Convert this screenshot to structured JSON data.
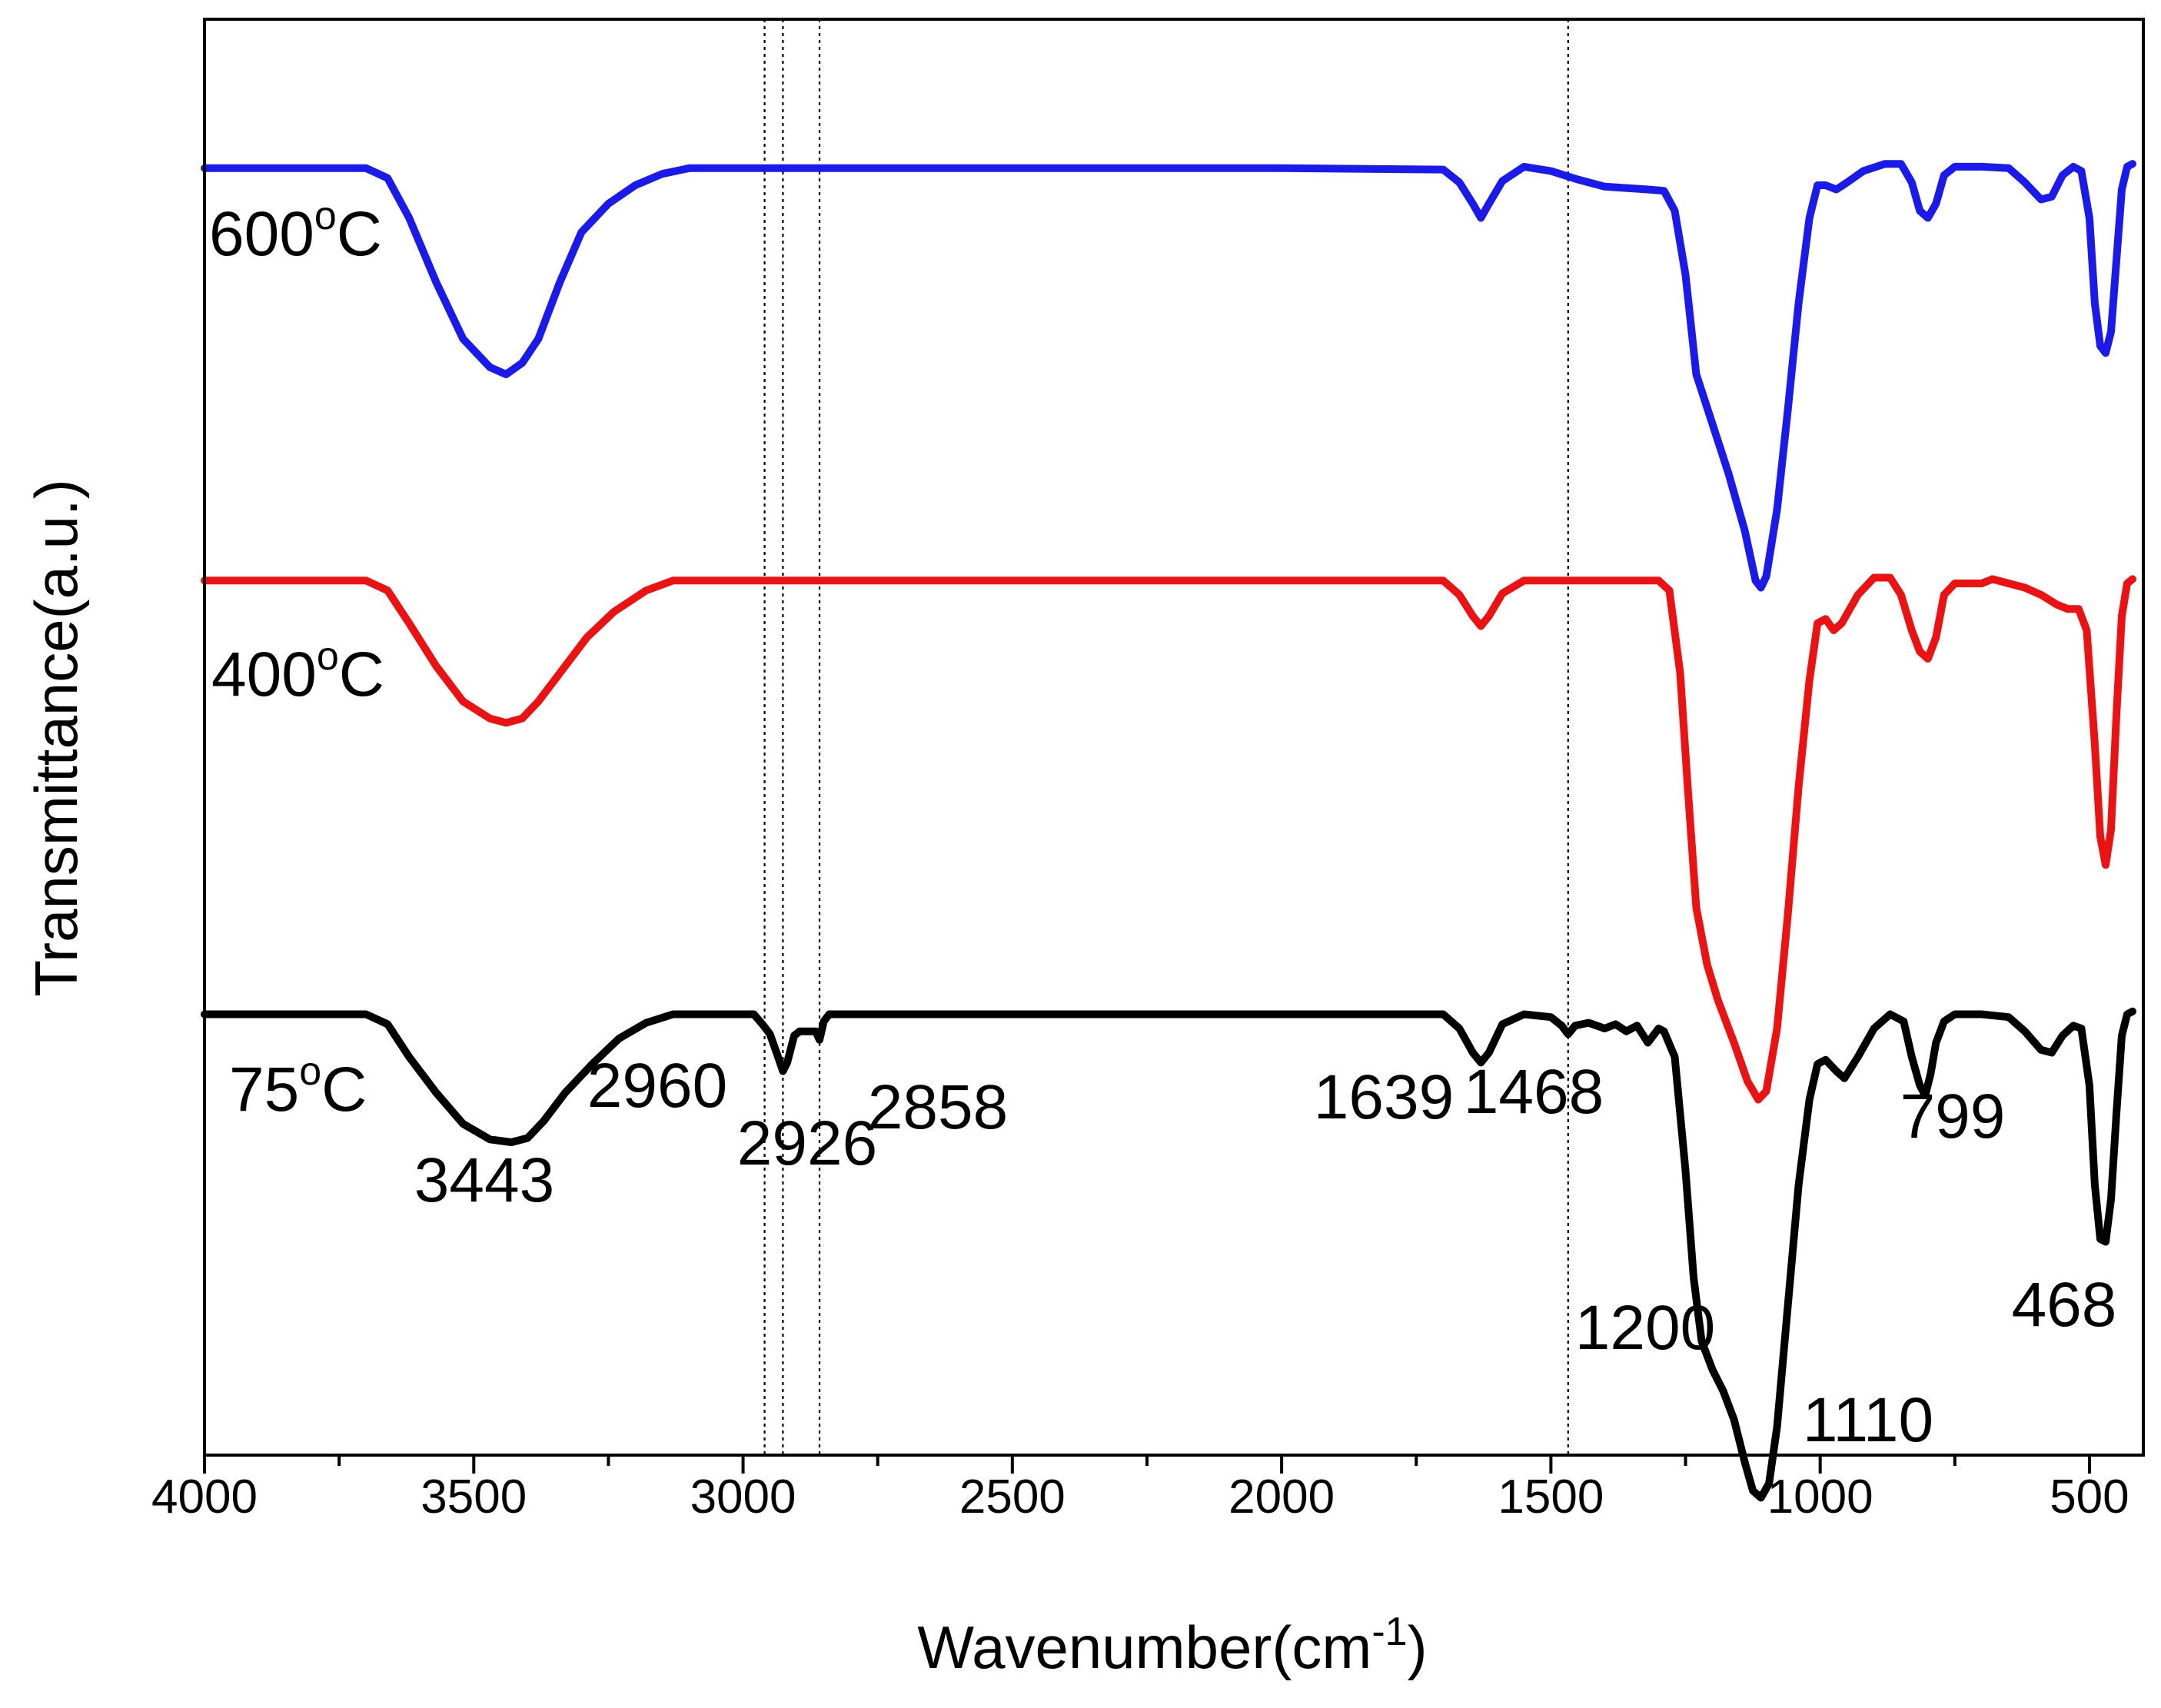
{
  "chart_data": {
    "type": "line",
    "title": "",
    "xlabel": "Wavenumber(cm",
    "xlabel_sup": "-1",
    "xlabel_end": ")",
    "ylabel": "Transmittance(a.u.)",
    "xlim": [
      4000,
      400
    ],
    "ylim": [
      0,
      100
    ],
    "x_ticks": [
      "4000",
      "3500",
      "3000",
      "2500",
      "2000",
      "1500",
      "1000",
      "500"
    ],
    "x_tick_values": [
      4000,
      3500,
      3000,
      2500,
      2000,
      1500,
      1000,
      500
    ],
    "grid": false,
    "reference_lines": [
      2960,
      2926,
      2858,
      1468
    ],
    "series": [
      {
        "name": "600",
        "label_sup": "o",
        "label_end": "C",
        "color": "#1a1aee",
        "points": [
          [
            4000,
            90.5
          ],
          [
            3700,
            90.5
          ],
          [
            3660,
            89.8
          ],
          [
            3620,
            87.0
          ],
          [
            3570,
            82.5
          ],
          [
            3520,
            78.5
          ],
          [
            3470,
            76.5
          ],
          [
            3440,
            76.0
          ],
          [
            3410,
            76.8
          ],
          [
            3380,
            78.5
          ],
          [
            3340,
            82.5
          ],
          [
            3300,
            86.0
          ],
          [
            3250,
            88.0
          ],
          [
            3200,
            89.3
          ],
          [
            3150,
            90.1
          ],
          [
            3100,
            90.5
          ],
          [
            2000,
            90.5
          ],
          [
            1700,
            90.4
          ],
          [
            1670,
            89.5
          ],
          [
            1645,
            88.0
          ],
          [
            1630,
            87.0
          ],
          [
            1615,
            88.0
          ],
          [
            1590,
            89.6
          ],
          [
            1550,
            90.6
          ],
          [
            1500,
            90.3
          ],
          [
            1450,
            89.7
          ],
          [
            1400,
            89.2
          ],
          [
            1320,
            89.0
          ],
          [
            1290,
            88.9
          ],
          [
            1270,
            87.5
          ],
          [
            1250,
            83.0
          ],
          [
            1230,
            76.0
          ],
          [
            1200,
            72.5
          ],
          [
            1170,
            69.0
          ],
          [
            1140,
            65.0
          ],
          [
            1120,
            61.5
          ],
          [
            1110,
            61.0
          ],
          [
            1100,
            61.8
          ],
          [
            1080,
            66.5
          ],
          [
            1060,
            73.5
          ],
          [
            1040,
            81.0
          ],
          [
            1020,
            87.0
          ],
          [
            1005,
            89.3
          ],
          [
            990,
            89.3
          ],
          [
            970,
            89.0
          ],
          [
            950,
            89.5
          ],
          [
            920,
            90.3
          ],
          [
            880,
            90.8
          ],
          [
            850,
            90.8
          ],
          [
            830,
            89.5
          ],
          [
            815,
            87.5
          ],
          [
            800,
            87.0
          ],
          [
            785,
            88.0
          ],
          [
            770,
            90.0
          ],
          [
            750,
            90.6
          ],
          [
            700,
            90.6
          ],
          [
            650,
            90.5
          ],
          [
            620,
            89.5
          ],
          [
            590,
            88.3
          ],
          [
            570,
            88.5
          ],
          [
            550,
            90.0
          ],
          [
            530,
            90.6
          ],
          [
            515,
            90.3
          ],
          [
            500,
            87.0
          ],
          [
            490,
            81.0
          ],
          [
            480,
            78.0
          ],
          [
            470,
            77.5
          ],
          [
            460,
            79.0
          ],
          [
            450,
            84.0
          ],
          [
            440,
            89.0
          ],
          [
            430,
            90.6
          ],
          [
            420,
            90.8
          ]
        ]
      },
      {
        "name": "400",
        "label_sup": "o",
        "label_end": "C",
        "color": "#ee1111",
        "points": [
          [
            4000,
            61.5
          ],
          [
            3700,
            61.5
          ],
          [
            3660,
            60.8
          ],
          [
            3620,
            58.5
          ],
          [
            3570,
            55.5
          ],
          [
            3520,
            53.0
          ],
          [
            3470,
            51.8
          ],
          [
            3440,
            51.5
          ],
          [
            3410,
            51.8
          ],
          [
            3380,
            53.0
          ],
          [
            3340,
            55.0
          ],
          [
            3290,
            57.5
          ],
          [
            3240,
            59.3
          ],
          [
            3180,
            60.8
          ],
          [
            3130,
            61.5
          ],
          [
            2000,
            61.5
          ],
          [
            1700,
            61.5
          ],
          [
            1670,
            60.5
          ],
          [
            1645,
            59.0
          ],
          [
            1630,
            58.3
          ],
          [
            1615,
            59.0
          ],
          [
            1590,
            60.6
          ],
          [
            1550,
            61.5
          ],
          [
            1300,
            61.5
          ],
          [
            1280,
            60.8
          ],
          [
            1260,
            55.0
          ],
          [
            1245,
            46.5
          ],
          [
            1230,
            38.5
          ],
          [
            1210,
            34.5
          ],
          [
            1190,
            32.0
          ],
          [
            1160,
            29.0
          ],
          [
            1135,
            26.3
          ],
          [
            1115,
            25.0
          ],
          [
            1100,
            25.6
          ],
          [
            1080,
            30.0
          ],
          [
            1060,
            38.0
          ],
          [
            1040,
            47.0
          ],
          [
            1020,
            54.5
          ],
          [
            1005,
            58.5
          ],
          [
            990,
            58.8
          ],
          [
            975,
            58.0
          ],
          [
            960,
            58.5
          ],
          [
            930,
            60.5
          ],
          [
            900,
            61.7
          ],
          [
            870,
            61.7
          ],
          [
            850,
            60.5
          ],
          [
            830,
            58.0
          ],
          [
            815,
            56.5
          ],
          [
            800,
            56.0
          ],
          [
            785,
            57.5
          ],
          [
            770,
            60.5
          ],
          [
            750,
            61.3
          ],
          [
            700,
            61.3
          ],
          [
            680,
            61.6
          ],
          [
            650,
            61.3
          ],
          [
            620,
            61.0
          ],
          [
            590,
            60.5
          ],
          [
            560,
            59.8
          ],
          [
            540,
            59.5
          ],
          [
            520,
            59.5
          ],
          [
            505,
            58.0
          ],
          [
            490,
            50.0
          ],
          [
            480,
            43.5
          ],
          [
            470,
            41.5
          ],
          [
            460,
            44.0
          ],
          [
            450,
            52.0
          ],
          [
            440,
            59.0
          ],
          [
            430,
            61.3
          ],
          [
            420,
            61.6
          ]
        ]
      },
      {
        "name": "75",
        "label_sup": "o",
        "label_end": "C",
        "color": "#000000",
        "points": [
          [
            4000,
            31.0
          ],
          [
            3700,
            31.0
          ],
          [
            3660,
            30.3
          ],
          [
            3620,
            28.0
          ],
          [
            3570,
            25.5
          ],
          [
            3520,
            23.3
          ],
          [
            3470,
            22.2
          ],
          [
            3430,
            22.0
          ],
          [
            3400,
            22.3
          ],
          [
            3370,
            23.5
          ],
          [
            3330,
            25.5
          ],
          [
            3280,
            27.5
          ],
          [
            3230,
            29.3
          ],
          [
            3180,
            30.4
          ],
          [
            3130,
            31.0
          ],
          [
            2980,
            31.0
          ],
          [
            2962,
            30.2
          ],
          [
            2950,
            29.6
          ],
          [
            2935,
            28.0
          ],
          [
            2926,
            27.0
          ],
          [
            2918,
            27.6
          ],
          [
            2905,
            29.5
          ],
          [
            2895,
            29.8
          ],
          [
            2880,
            29.8
          ],
          [
            2865,
            29.8
          ],
          [
            2858,
            29.2
          ],
          [
            2850,
            30.5
          ],
          [
            2840,
            31.0
          ],
          [
            2000,
            31.0
          ],
          [
            1700,
            31.0
          ],
          [
            1670,
            30.0
          ],
          [
            1645,
            28.3
          ],
          [
            1630,
            27.6
          ],
          [
            1615,
            28.3
          ],
          [
            1590,
            30.3
          ],
          [
            1550,
            31.0
          ],
          [
            1500,
            30.8
          ],
          [
            1480,
            30.2
          ],
          [
            1468,
            29.6
          ],
          [
            1455,
            30.2
          ],
          [
            1430,
            30.4
          ],
          [
            1400,
            30.0
          ],
          [
            1380,
            30.3
          ],
          [
            1360,
            29.8
          ],
          [
            1340,
            30.2
          ],
          [
            1320,
            29.0
          ],
          [
            1300,
            30.0
          ],
          [
            1290,
            29.8
          ],
          [
            1270,
            28.0
          ],
          [
            1250,
            20.0
          ],
          [
            1235,
            12.5
          ],
          [
            1220,
            8.0
          ],
          [
            1200,
            6.0
          ],
          [
            1180,
            4.5
          ],
          [
            1160,
            2.5
          ],
          [
            1140,
            -0.5
          ],
          [
            1125,
            -2.5
          ],
          [
            1110,
            -3.0
          ],
          [
            1095,
            -2.0
          ],
          [
            1080,
            2.0
          ],
          [
            1060,
            10.5
          ],
          [
            1040,
            19.0
          ],
          [
            1020,
            25.0
          ],
          [
            1005,
            27.5
          ],
          [
            990,
            27.8
          ],
          [
            970,
            27.0
          ],
          [
            955,
            26.5
          ],
          [
            930,
            28.0
          ],
          [
            900,
            30.0
          ],
          [
            870,
            31.0
          ],
          [
            845,
            30.5
          ],
          [
            830,
            28.0
          ],
          [
            815,
            26.0
          ],
          [
            805,
            25.3
          ],
          [
            795,
            26.8
          ],
          [
            785,
            29.0
          ],
          [
            770,
            30.5
          ],
          [
            750,
            31.0
          ],
          [
            700,
            31.0
          ],
          [
            650,
            30.8
          ],
          [
            620,
            29.8
          ],
          [
            590,
            28.5
          ],
          [
            570,
            28.3
          ],
          [
            550,
            29.5
          ],
          [
            530,
            30.2
          ],
          [
            515,
            30.0
          ],
          [
            500,
            26.0
          ],
          [
            490,
            19.0
          ],
          [
            480,
            15.2
          ],
          [
            470,
            15.0
          ],
          [
            460,
            18.0
          ],
          [
            450,
            24.0
          ],
          [
            440,
            29.5
          ],
          [
            430,
            31.0
          ],
          [
            420,
            31.2
          ]
        ]
      }
    ],
    "annotations": [
      {
        "text": "3443",
        "x": 3443
      },
      {
        "text": "2960",
        "x": 2960
      },
      {
        "text": "2926",
        "x": 2926
      },
      {
        "text": "2858",
        "x": 2858
      },
      {
        "text": "1639",
        "x": 1639
      },
      {
        "text": "1468",
        "x": 1468
      },
      {
        "text": "1200",
        "x": 1200
      },
      {
        "text": "1110",
        "x": 1110
      },
      {
        "text": "799",
        "x": 799
      },
      {
        "text": "468",
        "x": 468
      }
    ]
  }
}
